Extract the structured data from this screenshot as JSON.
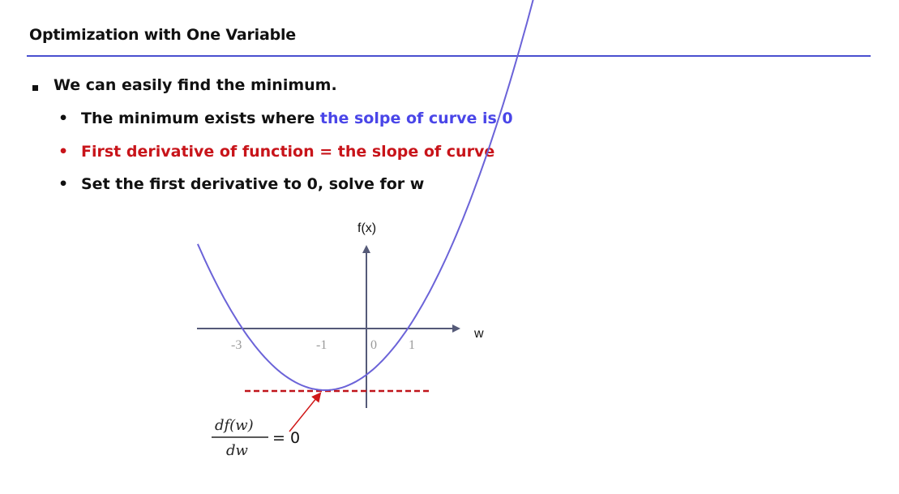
{
  "slide": {
    "title": "Optimization with One Variable"
  },
  "bullets": {
    "main": "We can easily find the minimum.",
    "sub1_prefix": "The minimum exists where ",
    "sub1_highlight": "the solpe of curve is 0",
    "sub2": "First derivative of function = the slope  of curve",
    "sub3": "Set the first derivative to 0, solve for w",
    "dot": "•"
  },
  "diagram": {
    "y_axis_label": "f(x)",
    "x_axis_label": "w",
    "ticks": [
      "-3",
      "-1",
      "0",
      "1"
    ],
    "derivative_numerator": "df(w)",
    "derivative_denominator": "dw",
    "derivative_equals": "= 0"
  },
  "colors": {
    "title_rule": "#4a4fd0",
    "highlight_blue": "#4a46e8",
    "highlight_red": "#c8141a",
    "curve": "#6b63d8",
    "tangent_line": "#c0141a",
    "pointer_arrow": "#d01818",
    "axes": "#555a78"
  }
}
